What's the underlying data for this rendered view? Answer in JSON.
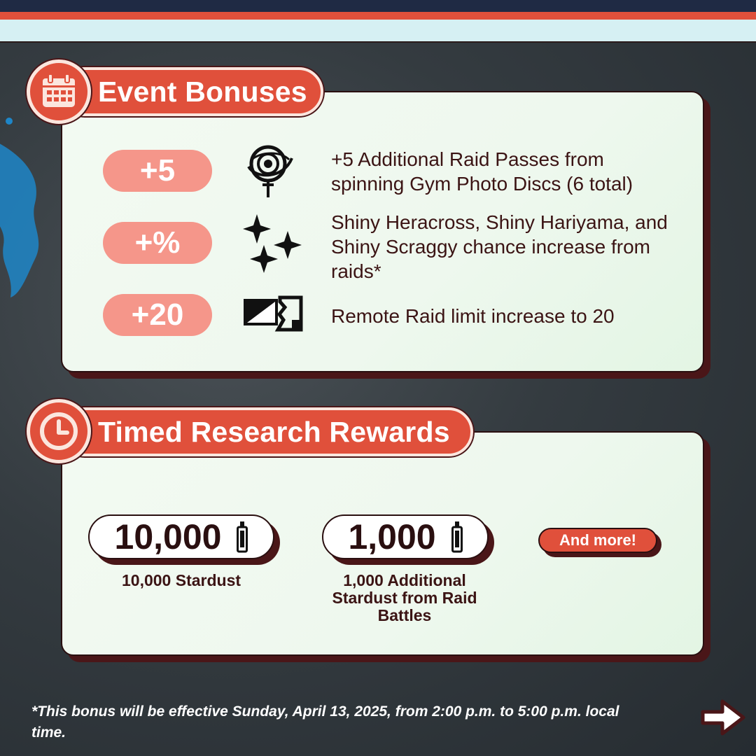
{
  "header_bonus": {
    "title": "Event Bonuses",
    "icon": "calendar-icon"
  },
  "bonuses": [
    {
      "badge": "+5",
      "icon": "gym-photo-disc-icon",
      "text": "+5 Additional Raid Passes from spinning Gym Photo Discs (6 total)"
    },
    {
      "badge": "+%",
      "icon": "sparkles-icon",
      "text": "Shiny Heracross, Shiny Hariyama, and Shiny Scraggy chance increase from raids*"
    },
    {
      "badge": "+20",
      "icon": "remote-raid-pass-icon",
      "text": "Remote Raid limit increase to 20"
    }
  ],
  "header_research": {
    "title": "Timed Research Rewards",
    "icon": "clock-icon"
  },
  "rewards": [
    {
      "value": "10,000",
      "icon": "stardust-icon",
      "caption": "10,000 Stardust"
    },
    {
      "value": "1,000",
      "icon": "stardust-icon",
      "caption": "1,000 Additional Stardust from Raid Battles"
    }
  ],
  "more_label": "And more!",
  "footnote": "*This bonus will be effective Sunday, April 13, 2025, from 2:00 p.m. to 5:00 p.m. local time.",
  "next_icon": "arrow-right-icon",
  "colors": {
    "accent": "#e0503b",
    "badge": "#f5968a",
    "navy": "#1f2a44",
    "panel": "#eef8ee",
    "shadow": "#4a1618"
  }
}
